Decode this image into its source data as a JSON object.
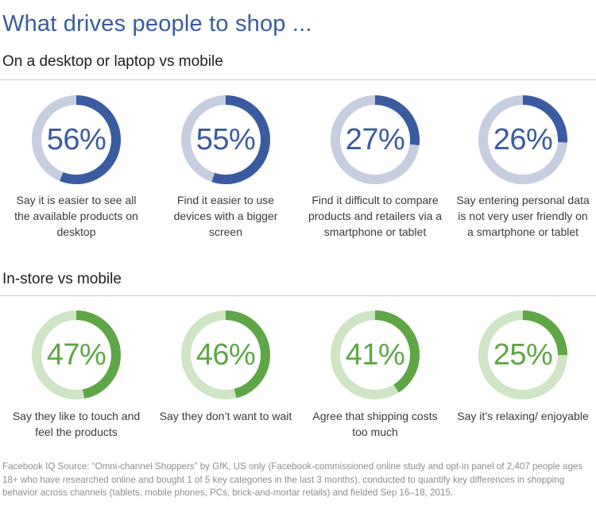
{
  "title": "What drives people to shop ...",
  "sections": [
    {
      "heading": "On a desktop or laptop vs mobile",
      "accent": "#3b5ba0",
      "track": "#c7cee0",
      "items": [
        {
          "value": 56,
          "label": "56%",
          "caption": "Say it is easier to see all the available products on desktop"
        },
        {
          "value": 55,
          "label": "55%",
          "caption": "Find it easier to use devices with a bigger screen"
        },
        {
          "value": 27,
          "label": "27%",
          "caption": "Find it difficult to compare products and retailers via a smartphone or tablet"
        },
        {
          "value": 26,
          "label": "26%",
          "caption": "Say entering personal data is not very user friendly on a smartphone or tablet"
        }
      ]
    },
    {
      "heading": "In-store vs mobile",
      "accent": "#5fa646",
      "track": "#cfe5c6",
      "items": [
        {
          "value": 47,
          "label": "47%",
          "caption": "Say they like to touch and feel the products"
        },
        {
          "value": 46,
          "label": "46%",
          "caption": "Say they don’t want to wait"
        },
        {
          "value": 41,
          "label": "41%",
          "caption": "Agree that shipping costs too much"
        },
        {
          "value": 25,
          "label": "25%",
          "caption": "Say it’s relaxing/ enjoyable"
        }
      ]
    }
  ],
  "chart_data": [
    {
      "type": "pie",
      "title": "On a desktop or laptop vs mobile",
      "categories": [
        "Say it is easier to see all the available products on desktop",
        "Find it easier to use devices with a bigger screen",
        "Find it difficult to compare products and retailers via a smartphone or tablet",
        "Say entering personal data is not very user friendly on a smartphone or tablet"
      ],
      "values": [
        56,
        55,
        27,
        26
      ]
    },
    {
      "type": "pie",
      "title": "In-store vs mobile",
      "categories": [
        "Say they like to touch and feel the products",
        "Say they don’t want to wait",
        "Agree that shipping costs too much",
        "Say it’s relaxing/ enjoyable"
      ],
      "values": [
        47,
        46,
        41,
        25
      ]
    }
  ],
  "footnote": "Facebook IQ Source: “Omni-channel Shoppers” by GfK, US only (Facebook-commissioned online study and opt-in panel of 2,407 people ages 18+ who have researched online and bought 1 of 5 key categories in the last 3 months), conducted to quantify key differences in shopping behavior across channels (tablets, mobile phones, PCs, brick-and-mortar retails) and fielded Sep 16–18, 2015."
}
